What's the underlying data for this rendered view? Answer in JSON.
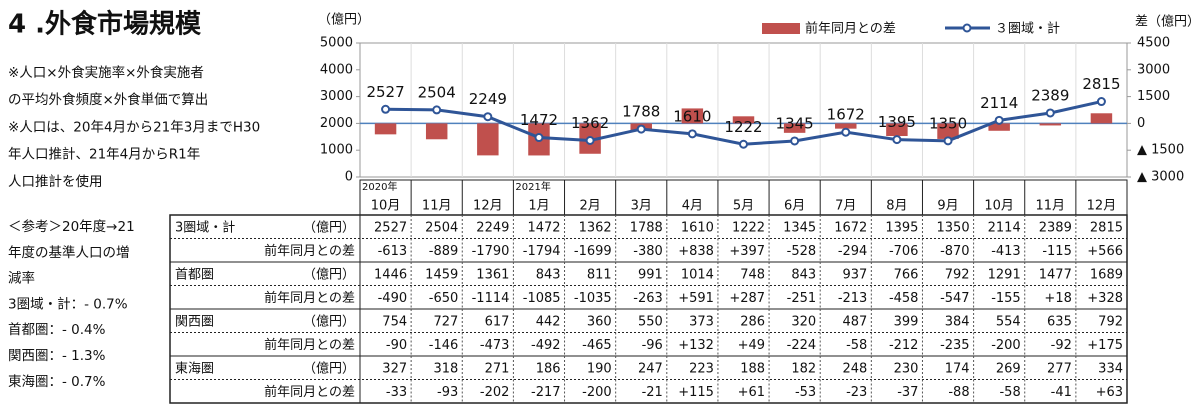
{
  "title": "4 .外食市場規模",
  "notes": [
    "※人口×外食実施率×外食実施者",
    "の平均外食頻度×外食単価で算出",
    "※人口は、20年4月から21年3月までH30",
    "年人口推計、21年4月からR1年",
    "人口推計を使用"
  ],
  "reference": [
    "＜参考＞20年度→21",
    "年度の基準人口の増",
    "減率",
    "3圏域・計：- 0.7%",
    "首都圏：- 0.4%",
    "関西圏：- 1.3%",
    "東海圏：- 0.7%"
  ],
  "chart_data": {
    "type": "combo",
    "y_label": "（億円）",
    "y2_label": "差（億円）",
    "categories": [
      "10月",
      "11月",
      "12月",
      "1月",
      "2月",
      "3月",
      "4月",
      "5月",
      "6月",
      "7月",
      "8月",
      "9月",
      "10月",
      "11月",
      "12月"
    ],
    "year_labels": [
      "2020年",
      null,
      null,
      "2021年",
      null,
      null,
      null,
      null,
      null,
      null,
      null,
      null,
      null,
      null,
      null
    ],
    "ylim": [
      0,
      5000
    ],
    "yticks": [
      0,
      1000,
      2000,
      3000,
      4000,
      5000
    ],
    "y2lim": [
      -3000,
      4500
    ],
    "y2ticks": [
      {
        "value": -3000,
        "label": "▲ 3000"
      },
      {
        "value": -1500,
        "label": "▲ 1500"
      },
      0,
      1500,
      3000,
      4500
    ],
    "series": [
      {
        "name": "前年同月との差",
        "type": "bar",
        "axis": "y2",
        "color": "#c0504d",
        "values": [
          -613,
          -889,
          -1790,
          -1794,
          -1699,
          -380,
          838,
          397,
          -528,
          -294,
          -706,
          -870,
          -413,
          -115,
          566
        ]
      },
      {
        "name": "３圏域・計",
        "type": "line",
        "color": "#2f5597",
        "values": [
          2527,
          2504,
          2249,
          1472,
          1362,
          1788,
          1610,
          1222,
          1345,
          1672,
          1395,
          1350,
          2114,
          2389,
          2815
        ]
      }
    ]
  },
  "table": {
    "rows": [
      {
        "label": "3圏域・計",
        "unit": "（億円）",
        "values": [
          2527,
          2504,
          2249,
          1472,
          1362,
          1788,
          1610,
          1222,
          1345,
          1672,
          1395,
          1350,
          2114,
          2389,
          2815
        ]
      },
      {
        "label": "前年同月との差",
        "values": [
          "-613",
          "-889",
          "-1790",
          "-1794",
          "-1699",
          "-380",
          "+838",
          "+397",
          "-528",
          "-294",
          "-706",
          "-870",
          "-413",
          "-115",
          "+566"
        ]
      },
      {
        "label": "首都圏",
        "unit": "（億円）",
        "values": [
          1446,
          1459,
          1361,
          843,
          811,
          991,
          1014,
          748,
          843,
          937,
          766,
          792,
          1291,
          1477,
          1689
        ]
      },
      {
        "label": "前年同月との差",
        "values": [
          "-490",
          "-650",
          "-1114",
          "-1085",
          "-1035",
          "-263",
          "+591",
          "+287",
          "-251",
          "-213",
          "-458",
          "-547",
          "-155",
          "+18",
          "+328"
        ]
      },
      {
        "label": "関西圏",
        "unit": "（億円）",
        "values": [
          754,
          727,
          617,
          442,
          360,
          550,
          373,
          286,
          320,
          487,
          399,
          384,
          554,
          635,
          792
        ]
      },
      {
        "label": "前年同月との差",
        "values": [
          "-90",
          "-146",
          "-473",
          "-492",
          "-465",
          "-96",
          "+132",
          "+49",
          "-224",
          "-58",
          "-212",
          "-235",
          "-200",
          "-92",
          "+175"
        ]
      },
      {
        "label": "東海圏",
        "unit": "（億円）",
        "values": [
          327,
          318,
          271,
          186,
          190,
          247,
          223,
          188,
          182,
          248,
          230,
          174,
          269,
          277,
          334
        ]
      },
      {
        "label": "前年同月との差",
        "values": [
          "-33",
          "-93",
          "-202",
          "-217",
          "-200",
          "-21",
          "+115",
          "+61",
          "-53",
          "-23",
          "-37",
          "-88",
          "-58",
          "-41",
          "+63"
        ]
      }
    ]
  }
}
